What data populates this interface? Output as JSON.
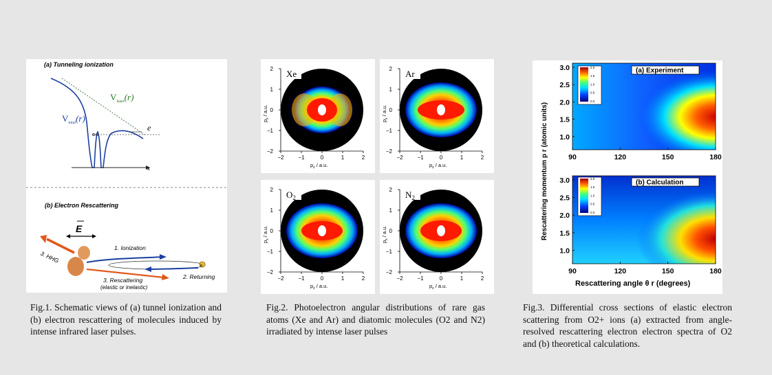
{
  "fig1": {
    "title_a": "(a) Tunneling ionization",
    "v_laser": "V",
    "v_laser_sub": "laser",
    "v_total": "V",
    "v_total_sub": "total",
    "r_arg": "(r)",
    "electron_a": "e",
    "x_axis": "x",
    "title_b": "(b) Electron Rescattering",
    "field": "E",
    "step1": "1. Ionization",
    "step2": "2. Returning",
    "step3": "3. Rescattering",
    "step3_sub": "(elastic or inelastic)",
    "hhg": "3. HHG",
    "electron_b": "e",
    "caption": "Fig.1. Schematic views of (a) tunnel ionization and (b) electron rescattering of molecules induced by intense infrared laser pulses."
  },
  "fig2": {
    "panels": [
      {
        "label": "Xe"
      },
      {
        "label": "Ar"
      },
      {
        "label": "O2"
      },
      {
        "label": "N2"
      }
    ],
    "x_ticks": [
      "−2",
      "−1",
      "0",
      "1",
      "2"
    ],
    "y_ticks": [
      "2",
      "1",
      "0",
      "−1",
      "−2"
    ],
    "xlabel": "p",
    "xlabel_sub": "z",
    "xlabel_unit": " / a.u.",
    "ylabel": "p",
    "ylabel_sub": "x",
    "ylabel_unit": " / a.u.",
    "caption": "Fig.2. Photoelectron angular distributions of rare gas atoms (Xe and Ar) and diatomic molecules (O2 and N2) irradiated by intense laser pulses"
  },
  "fig3": {
    "panel_a_label": "(a) Experiment",
    "panel_b_label": "(b) Calculation",
    "y_ticks": [
      "3.0",
      "2.5",
      "2.0",
      "1.5",
      "1.0"
    ],
    "x_ticks": [
      "90",
      "120",
      "150",
      "180"
    ],
    "cbar_a": [
      "2.0",
      "1.5",
      "1.0",
      "0.5",
      "0.0"
    ],
    "cbar_b": [
      "2.0",
      "1.5",
      "1.0",
      "0.5",
      "0.0"
    ],
    "ylabel": "Rescattering momentum p r (atomic units)",
    "xlabel": "Rescattering angle θ r (degrees)",
    "caption": "Fig.3. Differential cross sections of elastic electron scattering from O2+ ions (a) extracted from angle-resolved rescattering electron electron spectra of O2 and (b) theoretical calculations."
  },
  "colors": {
    "blue": "#1b3fa0",
    "green": "#1e7a1e",
    "orange": "#e0581c"
  }
}
